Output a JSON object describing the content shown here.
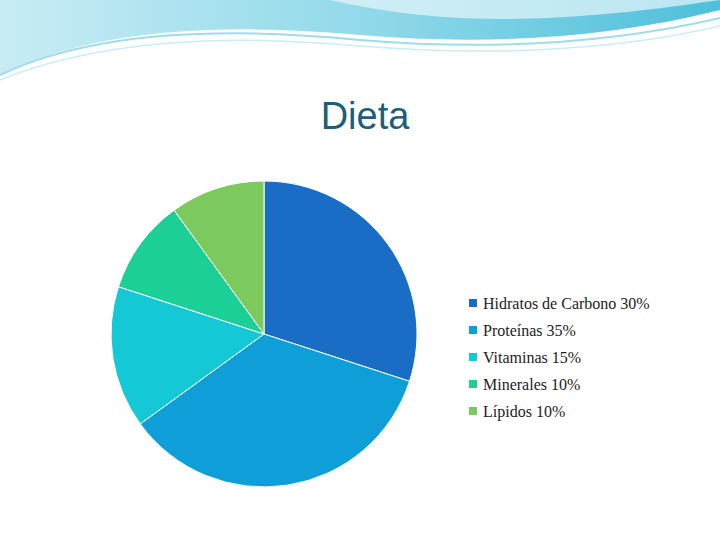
{
  "chart_data": {
    "type": "pie",
    "title": "Dieta",
    "categories": [
      "Hidratos de Carbono 30%",
      "Proteínas 35%",
      "Vitaminas 15%",
      "Minerales 10%",
      "Lípidos 10%"
    ],
    "values": [
      30,
      35,
      15,
      10,
      10
    ],
    "colors": [
      "#1a6dc4",
      "#0e9fd8",
      "#14c8d6",
      "#1ccf97",
      "#7cc95e"
    ],
    "legend": "right"
  }
}
